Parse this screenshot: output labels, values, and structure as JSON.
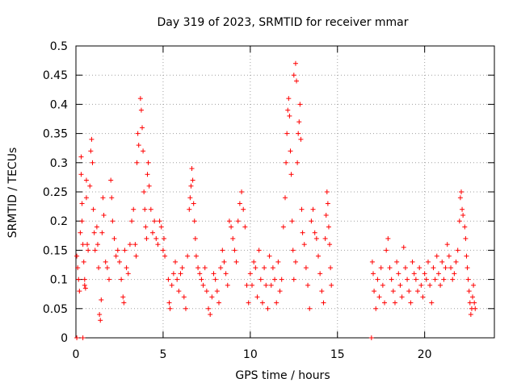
{
  "chart_data": {
    "type": "scatter",
    "title": "Day 319 of 2023, SRMTID for receiver mmar",
    "xlabel": "GPS time / hours",
    "ylabel": "SRMTID / TECUs",
    "xlim": [
      0,
      24
    ],
    "ylim": [
      0,
      0.5
    ],
    "x_ticks": [
      0,
      5,
      10,
      15,
      20
    ],
    "y_ticks": [
      0,
      0.05,
      0.1,
      0.15,
      0.2,
      0.25,
      0.3,
      0.35,
      0.4,
      0.45,
      0.5
    ],
    "grid": true,
    "legend": "none",
    "marker": "plus",
    "series_color": "#ff0000",
    "series": [
      {
        "points": [
          [
            0.05,
            0.14
          ],
          [
            0.1,
            0.12
          ],
          [
            0.15,
            0.1
          ],
          [
            0.2,
            0.08
          ],
          [
            0.25,
            0.18
          ],
          [
            0.3,
            0.31
          ],
          [
            0.3,
            0.28
          ],
          [
            0.35,
            0.23
          ],
          [
            0.35,
            0.2
          ],
          [
            0.4,
            0.16
          ],
          [
            0.45,
            0.13
          ],
          [
            0.5,
            0.1
          ],
          [
            0.5,
            0.09
          ],
          [
            0.55,
            0.085
          ],
          [
            0.6,
            0.27
          ],
          [
            0.6,
            0.24
          ],
          [
            0.65,
            0.16
          ],
          [
            0.7,
            0.15
          ],
          [
            0.8,
            0.26
          ],
          [
            0.85,
            0.32
          ],
          [
            0.9,
            0.34
          ],
          [
            0.95,
            0.3
          ],
          [
            1.0,
            0.22
          ],
          [
            1.05,
            0.18
          ],
          [
            1.1,
            0.15
          ],
          [
            1.2,
            0.19
          ],
          [
            1.25,
            0.16
          ],
          [
            1.3,
            0.12
          ],
          [
            1.35,
            0.04
          ],
          [
            1.4,
            0.03
          ],
          [
            1.45,
            0.065
          ],
          [
            1.5,
            0.18
          ],
          [
            1.55,
            0.24
          ],
          [
            1.6,
            0.21
          ],
          [
            1.7,
            0.13
          ],
          [
            1.8,
            0.12
          ],
          [
            1.9,
            0.1
          ],
          [
            2.0,
            0.27
          ],
          [
            2.05,
            0.24
          ],
          [
            2.1,
            0.2
          ],
          [
            2.2,
            0.17
          ],
          [
            2.3,
            0.14
          ],
          [
            2.4,
            0.15
          ],
          [
            2.5,
            0.13
          ],
          [
            2.6,
            0.1
          ],
          [
            2.7,
            0.07
          ],
          [
            2.75,
            0.06
          ],
          [
            2.8,
            0.15
          ],
          [
            2.9,
            0.12
          ],
          [
            3.0,
            0.11
          ],
          [
            3.1,
            0.16
          ],
          [
            3.2,
            0.2
          ],
          [
            3.3,
            0.22
          ],
          [
            3.4,
            0.16
          ],
          [
            3.45,
            0.14
          ],
          [
            3.5,
            0.3
          ],
          [
            3.55,
            0.35
          ],
          [
            3.6,
            0.33
          ],
          [
            3.7,
            0.41
          ],
          [
            3.75,
            0.39
          ],
          [
            3.8,
            0.36
          ],
          [
            3.85,
            0.32
          ],
          [
            3.9,
            0.25
          ],
          [
            3.95,
            0.22
          ],
          [
            4.0,
            0.19
          ],
          [
            4.05,
            0.17
          ],
          [
            4.1,
            0.28
          ],
          [
            4.15,
            0.3
          ],
          [
            4.2,
            0.26
          ],
          [
            4.3,
            0.22
          ],
          [
            4.4,
            0.18
          ],
          [
            4.5,
            0.2
          ],
          [
            4.6,
            0.17
          ],
          [
            4.7,
            0.16
          ],
          [
            4.8,
            0.2
          ],
          [
            4.9,
            0.19
          ],
          [
            5.0,
            0.15
          ],
          [
            5.05,
            0.17
          ],
          [
            5.1,
            0.14
          ],
          [
            5.3,
            0.1
          ],
          [
            5.35,
            0.06
          ],
          [
            5.4,
            0.05
          ],
          [
            5.5,
            0.09
          ],
          [
            5.6,
            0.11
          ],
          [
            5.7,
            0.13
          ],
          [
            5.8,
            0.1
          ],
          [
            5.9,
            0.08
          ],
          [
            6.0,
            0.11
          ],
          [
            6.1,
            0.12
          ],
          [
            6.2,
            0.07
          ],
          [
            6.3,
            0.05
          ],
          [
            6.4,
            0.14
          ],
          [
            6.5,
            0.22
          ],
          [
            6.55,
            0.24
          ],
          [
            6.6,
            0.26
          ],
          [
            6.65,
            0.29
          ],
          [
            6.7,
            0.27
          ],
          [
            6.75,
            0.23
          ],
          [
            6.8,
            0.2
          ],
          [
            6.85,
            0.17
          ],
          [
            6.9,
            0.14
          ],
          [
            7.0,
            0.12
          ],
          [
            7.1,
            0.11
          ],
          [
            7.2,
            0.1
          ],
          [
            7.3,
            0.09
          ],
          [
            7.4,
            0.12
          ],
          [
            7.5,
            0.08
          ],
          [
            7.6,
            0.05
          ],
          [
            7.7,
            0.04
          ],
          [
            7.8,
            0.07
          ],
          [
            7.9,
            0.11
          ],
          [
            8.0,
            0.1
          ],
          [
            8.1,
            0.08
          ],
          [
            8.2,
            0.06
          ],
          [
            8.3,
            0.12
          ],
          [
            8.4,
            0.15
          ],
          [
            8.5,
            0.13
          ],
          [
            8.6,
            0.11
          ],
          [
            8.7,
            0.09
          ],
          [
            8.8,
            0.2
          ],
          [
            8.9,
            0.19
          ],
          [
            9.0,
            0.17
          ],
          [
            9.1,
            0.15
          ],
          [
            9.2,
            0.13
          ],
          [
            9.3,
            0.2
          ],
          [
            9.4,
            0.23
          ],
          [
            9.5,
            0.25
          ],
          [
            9.6,
            0.22
          ],
          [
            9.7,
            0.19
          ],
          [
            9.8,
            0.09
          ],
          [
            9.9,
            0.06
          ],
          [
            10.0,
            0.11
          ],
          [
            10.1,
            0.09
          ],
          [
            10.2,
            0.13
          ],
          [
            10.3,
            0.12
          ],
          [
            10.4,
            0.07
          ],
          [
            10.5,
            0.15
          ],
          [
            10.6,
            0.1
          ],
          [
            10.7,
            0.06
          ],
          [
            10.8,
            0.12
          ],
          [
            10.9,
            0.09
          ],
          [
            11.0,
            0.05
          ],
          [
            11.1,
            0.14
          ],
          [
            11.2,
            0.09
          ],
          [
            11.3,
            0.12
          ],
          [
            11.4,
            0.1
          ],
          [
            11.5,
            0.06
          ],
          [
            11.6,
            0.13
          ],
          [
            11.7,
            0.08
          ],
          [
            11.8,
            0.1
          ],
          [
            11.9,
            0.19
          ],
          [
            12.0,
            0.24
          ],
          [
            12.05,
            0.3
          ],
          [
            12.1,
            0.35
          ],
          [
            12.15,
            0.39
          ],
          [
            12.2,
            0.41
          ],
          [
            12.25,
            0.38
          ],
          [
            12.3,
            0.32
          ],
          [
            12.35,
            0.28
          ],
          [
            12.4,
            0.2
          ],
          [
            12.45,
            0.15
          ],
          [
            12.5,
            0.1
          ],
          [
            12.6,
            0.13
          ],
          [
            12.7,
            0.3
          ],
          [
            12.75,
            0.35
          ],
          [
            12.8,
            0.37
          ],
          [
            12.85,
            0.4
          ],
          [
            12.9,
            0.34
          ],
          [
            12.5,
            0.45
          ],
          [
            12.6,
            0.47
          ],
          [
            12.65,
            0.44
          ],
          [
            12.95,
            0.22
          ],
          [
            13.0,
            0.18
          ],
          [
            13.1,
            0.16
          ],
          [
            13.2,
            0.12
          ],
          [
            13.3,
            0.09
          ],
          [
            13.4,
            0.05
          ],
          [
            13.5,
            0.2
          ],
          [
            13.6,
            0.22
          ],
          [
            13.7,
            0.18
          ],
          [
            13.8,
            0.17
          ],
          [
            13.9,
            0.14
          ],
          [
            14.0,
            0.11
          ],
          [
            14.1,
            0.08
          ],
          [
            14.2,
            0.06
          ],
          [
            14.3,
            0.17
          ],
          [
            14.35,
            0.21
          ],
          [
            14.4,
            0.25
          ],
          [
            14.45,
            0.23
          ],
          [
            14.5,
            0.19
          ],
          [
            14.55,
            0.16
          ],
          [
            14.6,
            0.12
          ],
          [
            14.65,
            0.09
          ],
          [
            16.95,
            0.0
          ],
          [
            17.0,
            0.13
          ],
          [
            17.05,
            0.11
          ],
          [
            17.1,
            0.08
          ],
          [
            17.2,
            0.05
          ],
          [
            17.3,
            0.1
          ],
          [
            17.4,
            0.07
          ],
          [
            17.5,
            0.12
          ],
          [
            17.6,
            0.09
          ],
          [
            17.7,
            0.06
          ],
          [
            17.8,
            0.15
          ],
          [
            17.9,
            0.17
          ],
          [
            18.0,
            0.12
          ],
          [
            18.1,
            0.1
          ],
          [
            18.2,
            0.08
          ],
          [
            18.3,
            0.06
          ],
          [
            18.4,
            0.13
          ],
          [
            18.5,
            0.11
          ],
          [
            18.6,
            0.09
          ],
          [
            18.7,
            0.07
          ],
          [
            18.8,
            0.155
          ],
          [
            18.9,
            0.12
          ],
          [
            19.0,
            0.1
          ],
          [
            19.1,
            0.08
          ],
          [
            19.2,
            0.06
          ],
          [
            19.3,
            0.13
          ],
          [
            19.4,
            0.11
          ],
          [
            19.5,
            0.1
          ],
          [
            19.6,
            0.08
          ],
          [
            19.7,
            0.12
          ],
          [
            19.8,
            0.09
          ],
          [
            19.9,
            0.07
          ],
          [
            20.0,
            0.11
          ],
          [
            20.1,
            0.1
          ],
          [
            20.2,
            0.13
          ],
          [
            20.3,
            0.09
          ],
          [
            20.4,
            0.06
          ],
          [
            20.5,
            0.12
          ],
          [
            20.6,
            0.1
          ],
          [
            20.7,
            0.14
          ],
          [
            20.8,
            0.11
          ],
          [
            20.9,
            0.09
          ],
          [
            21.0,
            0.13
          ],
          [
            21.1,
            0.1
          ],
          [
            21.2,
            0.12
          ],
          [
            21.3,
            0.16
          ],
          [
            21.4,
            0.14
          ],
          [
            21.5,
            0.12
          ],
          [
            21.6,
            0.1
          ],
          [
            21.7,
            0.11
          ],
          [
            21.8,
            0.13
          ],
          [
            21.9,
            0.15
          ],
          [
            22.0,
            0.2
          ],
          [
            22.05,
            0.24
          ],
          [
            22.1,
            0.25
          ],
          [
            22.15,
            0.22
          ],
          [
            22.2,
            0.21
          ],
          [
            22.3,
            0.19
          ],
          [
            22.35,
            0.17
          ],
          [
            22.4,
            0.14
          ],
          [
            22.45,
            0.12
          ],
          [
            22.5,
            0.1
          ],
          [
            22.55,
            0.08
          ],
          [
            22.6,
            0.06
          ],
          [
            22.65,
            0.04
          ],
          [
            22.7,
            0.05
          ],
          [
            22.75,
            0.07
          ],
          [
            22.8,
            0.09
          ],
          [
            22.85,
            0.06
          ],
          [
            22.9,
            0.05
          ],
          [
            0.05,
            0.0
          ],
          [
            0.4,
            0.0
          ]
        ]
      }
    ]
  }
}
